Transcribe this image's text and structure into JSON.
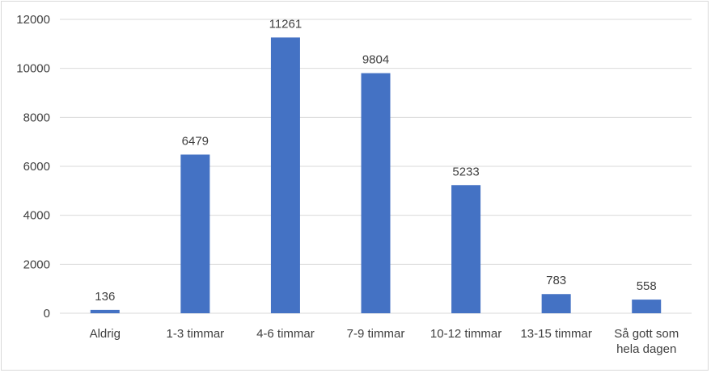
{
  "chart_data": {
    "type": "bar",
    "title": "",
    "xlabel": "",
    "ylabel": "",
    "categories": [
      "Aldrig",
      "1-3 timmar",
      "4-6 timmar",
      "7-9 timmar",
      "10-12 timmar",
      "13-15 timmar",
      "Så gott som hela dagen"
    ],
    "category_lines": [
      [
        "Aldrig"
      ],
      [
        "1-3 timmar"
      ],
      [
        "4-6 timmar"
      ],
      [
        "7-9 timmar"
      ],
      [
        "10-12 timmar"
      ],
      [
        "13-15 timmar"
      ],
      [
        "Så gott som",
        "hela dagen"
      ]
    ],
    "values": [
      136,
      6479,
      11261,
      9804,
      5233,
      783,
      558
    ],
    "ylim": [
      0,
      12000
    ],
    "yticks": [
      0,
      2000,
      4000,
      6000,
      8000,
      10000,
      12000
    ],
    "grid": true,
    "legend": "none",
    "data_labels": true,
    "colors": {
      "bar": "#4472c4",
      "grid": "#d9d9d9",
      "text": "#404040"
    }
  }
}
